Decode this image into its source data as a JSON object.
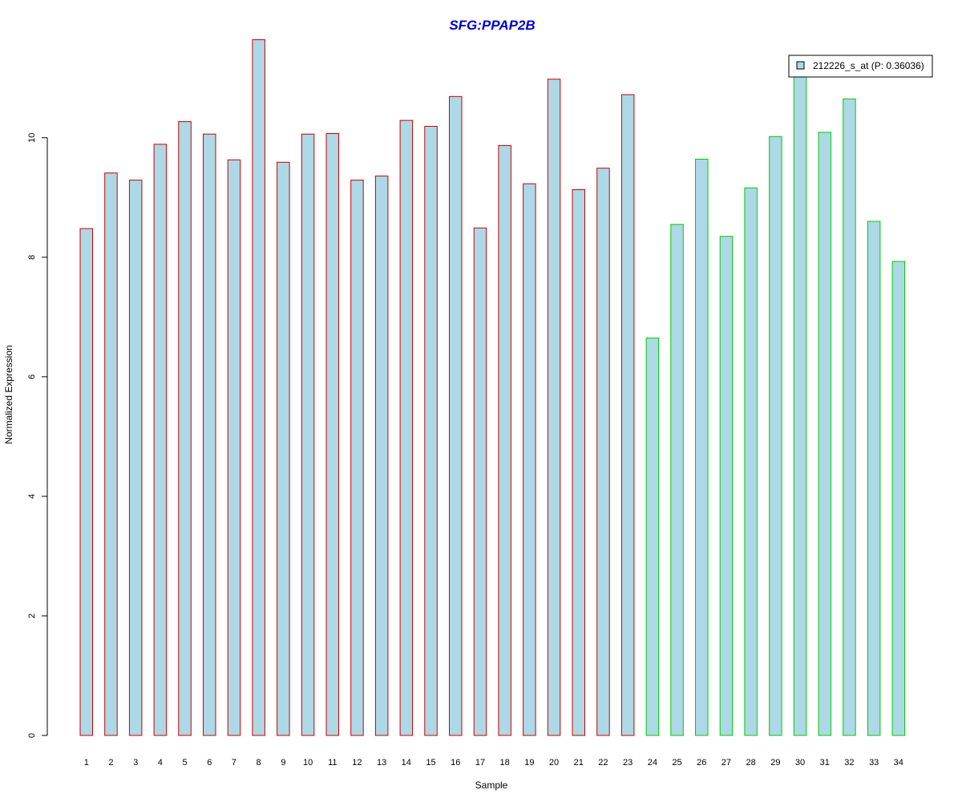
{
  "chart_data": {
    "type": "bar",
    "title": "SFG:PPAP2B",
    "title_color": "#0000CC",
    "xlabel": "Sample",
    "ylabel": "Normalized Expression",
    "ylim": [
      0,
      11.7
    ],
    "yticks": [
      0,
      2,
      4,
      6,
      8,
      10
    ],
    "grid": false,
    "legend_position": "top-right",
    "bar_fill": "#ADD8E6",
    "categories": [
      "1",
      "2",
      "3",
      "4",
      "5",
      "6",
      "7",
      "8",
      "9",
      "10",
      "11",
      "12",
      "13",
      "14",
      "15",
      "16",
      "17",
      "18",
      "19",
      "20",
      "21",
      "22",
      "23",
      "24",
      "25",
      "26",
      "27",
      "28",
      "29",
      "30",
      "31",
      "32",
      "33",
      "34"
    ],
    "series": [
      {
        "name": "212226_s_at (P: 0.36036)",
        "values": [
          8.48,
          9.41,
          9.29,
          9.89,
          10.27,
          10.06,
          9.63,
          11.64,
          9.59,
          10.06,
          10.07,
          9.29,
          9.36,
          10.29,
          10.19,
          10.69,
          8.49,
          9.87,
          9.23,
          10.98,
          9.13,
          9.49,
          10.72,
          6.65,
          8.55,
          9.64,
          8.35,
          9.16,
          10.02,
          11.23,
          10.09,
          10.65,
          8.6,
          7.93
        ]
      }
    ],
    "groups": [
      {
        "from": 1,
        "to": 23,
        "border_color": "#CC0000"
      },
      {
        "from": 24,
        "to": 34,
        "border_color": "#00CC00"
      }
    ]
  }
}
